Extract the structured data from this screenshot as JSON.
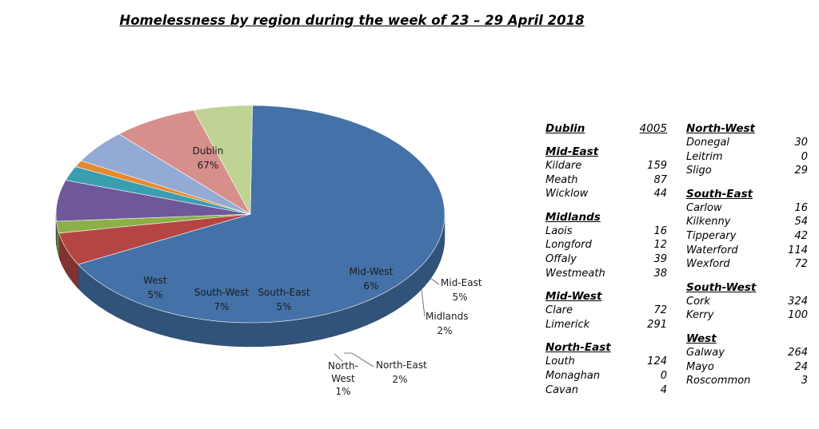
{
  "title": "Homelessness by region during the week of 23 – 29 April 2018",
  "chart_data": {
    "type": "pie",
    "title": "Homelessness by region during the week of 23 – 29 April 2018",
    "slices": [
      {
        "name": "Dublin",
        "pct": "67%",
        "value": 4005,
        "color": "#4472A8"
      },
      {
        "name": "Mid-East",
        "pct": "5%",
        "value": 290,
        "color": "#B54542"
      },
      {
        "name": "Midlands",
        "pct": "2%",
        "value": 105,
        "color": "#8CAF4A"
      },
      {
        "name": "Mid-West",
        "pct": "6%",
        "value": 363,
        "color": "#6E579A"
      },
      {
        "name": "North-East",
        "pct": "2%",
        "value": 128,
        "color": "#3A9DB0"
      },
      {
        "name": "North-West",
        "pct": "1%",
        "value": 59,
        "color": "#E58A2E"
      },
      {
        "name": "South-East",
        "pct": "5%",
        "value": 298,
        "color": "#93AAD4"
      },
      {
        "name": "South-West",
        "pct": "7%",
        "value": 424,
        "color": "#D78F8C"
      },
      {
        "name": "West",
        "pct": "5%",
        "value": 291,
        "color": "#BED394"
      }
    ]
  },
  "table": {
    "col1": [
      {
        "title": "Dublin",
        "value": "4005",
        "rows": []
      },
      {
        "title": "Mid-East",
        "rows": [
          {
            "name": "Kildare",
            "value": "159"
          },
          {
            "name": "Meath",
            "value": "87"
          },
          {
            "name": "Wicklow",
            "value": "44"
          }
        ]
      },
      {
        "title": "Midlands",
        "rows": [
          {
            "name": "Laois",
            "value": "16"
          },
          {
            "name": "Longford",
            "value": "12"
          },
          {
            "name": "Offaly",
            "value": "39"
          },
          {
            "name": "Westmeath",
            "value": "38"
          }
        ]
      },
      {
        "title": "Mid-West",
        "rows": [
          {
            "name": "Clare",
            "value": "72"
          },
          {
            "name": "Limerick",
            "value": "291"
          }
        ]
      },
      {
        "title": "North-East",
        "rows": [
          {
            "name": "Louth",
            "value": "124"
          },
          {
            "name": "Monaghan",
            "value": "0"
          },
          {
            "name": "Cavan",
            "value": "4"
          }
        ]
      }
    ],
    "col2": [
      {
        "title": "North-West",
        "rows": [
          {
            "name": "Donegal",
            "value": "30"
          },
          {
            "name": "Leitrim",
            "value": "0"
          },
          {
            "name": "Sligo",
            "value": "29"
          }
        ]
      },
      {
        "title": "South-East",
        "rows": [
          {
            "name": "Carlow",
            "value": "16"
          },
          {
            "name": "Kilkenny",
            "value": "54"
          },
          {
            "name": "Tipperary",
            "value": "42"
          },
          {
            "name": "Waterford",
            "value": "114"
          },
          {
            "name": "Wexford",
            "value": "72"
          }
        ]
      },
      {
        "title": "South-West",
        "rows": [
          {
            "name": "Cork",
            "value": "324"
          },
          {
            "name": "Kerry",
            "value": "100"
          }
        ]
      },
      {
        "title": "West",
        "rows": [
          {
            "name": "Galway",
            "value": "264"
          },
          {
            "name": "Mayo",
            "value": "24"
          },
          {
            "name": "Roscommon",
            "value": "3"
          }
        ]
      }
    ]
  }
}
